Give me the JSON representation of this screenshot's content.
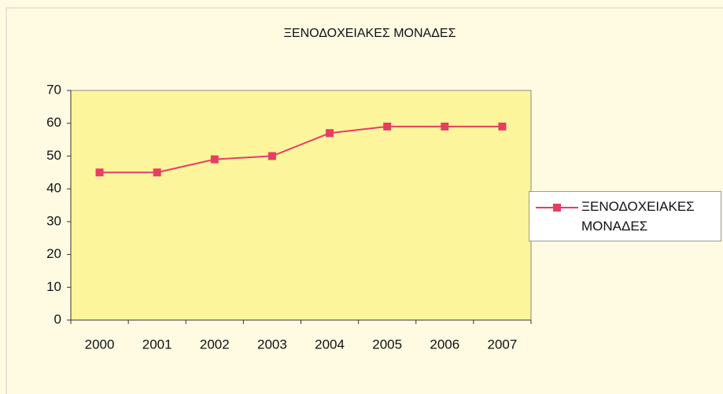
{
  "chart_data": {
    "type": "line",
    "title": "ΞΕΝΟΔΟΧΕΙΑΚΕΣ ΜΟΝΑΔΕΣ",
    "categories": [
      "2000",
      "2001",
      "2002",
      "2003",
      "2004",
      "2005",
      "2006",
      "2007"
    ],
    "series": [
      {
        "name": "ΞΕΝΟΔΟΧΕΙΑΚΕΣ ΜΟΝΑΔΕΣ",
        "color": "#e63e62",
        "values": [
          45,
          45,
          49,
          50,
          57,
          59,
          59,
          59
        ]
      }
    ],
    "ylim": [
      0,
      70
    ],
    "yticks": [
      0,
      10,
      20,
      30,
      40,
      50,
      60,
      70
    ],
    "grid": false,
    "legend": "right",
    "plot_background": "#fdf59c"
  }
}
